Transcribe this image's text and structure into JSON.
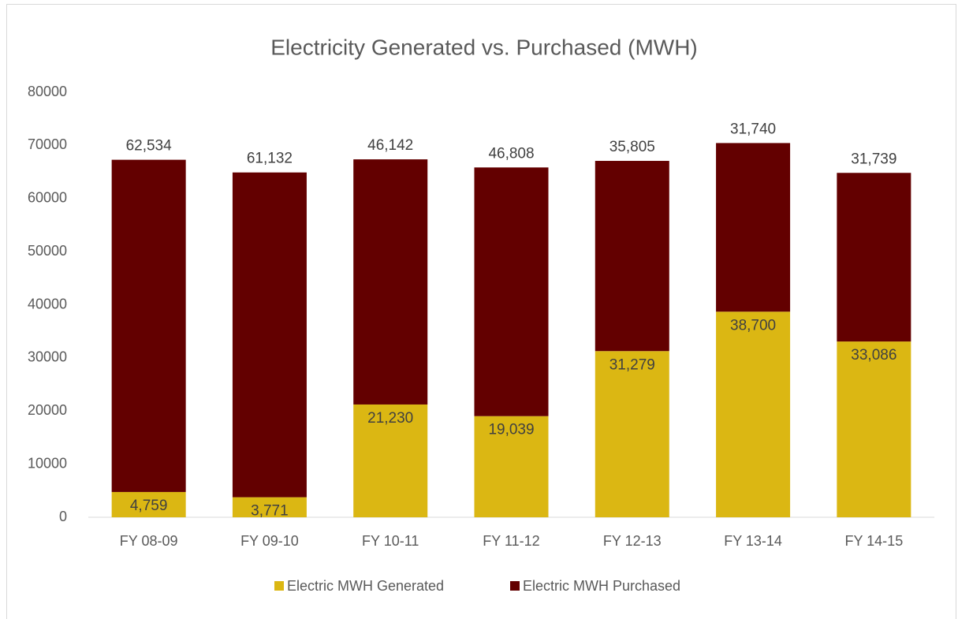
{
  "chart_data": {
    "type": "stacked_bar",
    "title": "Electricity Generated vs. Purchased (MWH)",
    "categories": [
      "FY 08-09",
      "FY 09-10",
      "FY 10-11",
      "FY 11-12",
      "FY 12-13",
      "FY 13-14",
      "FY 14-15"
    ],
    "series": [
      {
        "name": "Electric MWH Generated",
        "color": "#dbb713",
        "values": [
          4759,
          3771,
          21230,
          19039,
          31279,
          38700,
          33086
        ],
        "value_labels": [
          "4,759",
          "3,771",
          "21,230",
          "19,039",
          "31,279",
          "38,700",
          "33,086"
        ]
      },
      {
        "name": "Electric MWH Purchased",
        "color": "#630000",
        "values": [
          62534,
          61132,
          46142,
          46808,
          35805,
          31740,
          31739
        ],
        "value_labels": [
          "62,534",
          "61,132",
          "46,142",
          "46,808",
          "35,805",
          "31,740",
          "31,739"
        ]
      }
    ],
    "ylim": [
      0,
      80000
    ],
    "yticks": [
      0,
      10000,
      20000,
      30000,
      40000,
      50000,
      60000,
      70000,
      80000
    ],
    "grid": false,
    "legend": "bottom"
  }
}
